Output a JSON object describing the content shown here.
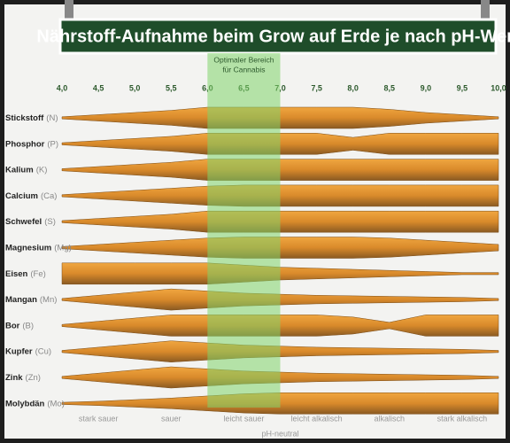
{
  "chart_data": {
    "type": "band",
    "title": "Nährstoff-Aufnahme beim Grow auf Erde je nach pH-Wert",
    "xlim": [
      4,
      10
    ],
    "xticks": [
      {
        "value": 4,
        "label": "4,0"
      },
      {
        "value": 4.5,
        "label": "4,5"
      },
      {
        "value": 5,
        "label": "5,0"
      },
      {
        "value": 5.5,
        "label": "5,5"
      },
      {
        "value": 6,
        "label": "6,0"
      },
      {
        "value": 6.5,
        "label": "6,5"
      },
      {
        "value": 7,
        "label": "7,0"
      },
      {
        "value": 7.5,
        "label": "7,5"
      },
      {
        "value": 8,
        "label": "8,0"
      },
      {
        "value": 8.5,
        "label": "8,5"
      },
      {
        "value": 9,
        "label": "9,0"
      },
      {
        "value": 9.5,
        "label": "9,5"
      },
      {
        "value": 10,
        "label": "10,0"
      }
    ],
    "highlight": {
      "from": 6,
      "to": 7,
      "label_lines": [
        "Optimaler Bereich",
        "für Cannabis"
      ],
      "color": "#7fd36a"
    },
    "zones": [
      {
        "label": "stark sauer",
        "from": 4,
        "to": 5
      },
      {
        "label": "sauer",
        "from": 5,
        "to": 6
      },
      {
        "label": "leicht sauer",
        "from": 6,
        "to": 7
      },
      {
        "label": "leicht alkalisch",
        "from": 7,
        "to": 8
      },
      {
        "label": "alkalisch",
        "from": 8,
        "to": 9
      },
      {
        "label": "stark alkalisch",
        "from": 9,
        "to": 10
      }
    ],
    "neutral": {
      "label": "pH-neutral",
      "value": 7
    },
    "color": "#d98a2b",
    "series": [
      {
        "name": "Stickstoff",
        "symbol": "(N)",
        "values": [
          0.1,
          0.3,
          0.5,
          0.7,
          1,
          1,
          1,
          1,
          1,
          0.8,
          0.5,
          0.3,
          0.1
        ]
      },
      {
        "name": "Phosphor",
        "symbol": "(P)",
        "values": [
          0.1,
          0.3,
          0.5,
          0.7,
          1,
          1,
          1,
          1,
          0.6,
          1,
          1,
          1,
          1
        ]
      },
      {
        "name": "Kalium",
        "symbol": "(K)",
        "values": [
          0.1,
          0.3,
          0.5,
          0.7,
          1,
          1,
          1,
          1,
          1,
          1,
          1,
          1,
          1
        ]
      },
      {
        "name": "Calcium",
        "symbol": "(Ca)",
        "values": [
          0.1,
          0.3,
          0.5,
          0.7,
          0.9,
          1,
          1,
          1,
          1,
          1,
          1,
          1,
          1
        ]
      },
      {
        "name": "Schwefel",
        "symbol": "(S)",
        "values": [
          0.1,
          0.3,
          0.5,
          0.7,
          1,
          1,
          1,
          1,
          1,
          1,
          1,
          1,
          1
        ]
      },
      {
        "name": "Magnesium",
        "symbol": "(Mg)",
        "values": [
          0.1,
          0.3,
          0.5,
          0.7,
          0.9,
          1,
          1,
          1,
          1,
          0.9,
          0.7,
          0.5,
          0.3
        ]
      },
      {
        "name": "Eisen",
        "symbol": "(Fe)",
        "values": [
          1,
          1,
          1,
          1,
          1,
          0.8,
          0.6,
          0.5,
          0.4,
          0.3,
          0.2,
          0.1,
          0.1
        ]
      },
      {
        "name": "Mangan",
        "symbol": "(Mn)",
        "values": [
          0.1,
          0.4,
          0.7,
          1,
          0.8,
          0.6,
          0.5,
          0.4,
          0.35,
          0.3,
          0.25,
          0.2,
          0.1
        ]
      },
      {
        "name": "Bor",
        "symbol": "(B)",
        "values": [
          0.1,
          0.4,
          0.7,
          1,
          1,
          1,
          1,
          1,
          0.8,
          0.3,
          1,
          1,
          1
        ]
      },
      {
        "name": "Kupfer",
        "symbol": "(Cu)",
        "values": [
          0.1,
          0.4,
          0.7,
          1,
          0.8,
          0.6,
          0.5,
          0.4,
          0.35,
          0.3,
          0.25,
          0.2,
          0.1
        ]
      },
      {
        "name": "Zink",
        "symbol": "(Zn)",
        "values": [
          0.1,
          0.4,
          0.7,
          1,
          0.8,
          0.6,
          0.5,
          0.4,
          0.35,
          0.3,
          0.25,
          0.2,
          0.1
        ]
      },
      {
        "name": "Molybdän",
        "symbol": "(Mo)",
        "values": [
          0.1,
          0.2,
          0.35,
          0.5,
          0.7,
          0.9,
          1,
          1,
          1,
          1,
          1,
          1,
          1
        ]
      }
    ]
  }
}
